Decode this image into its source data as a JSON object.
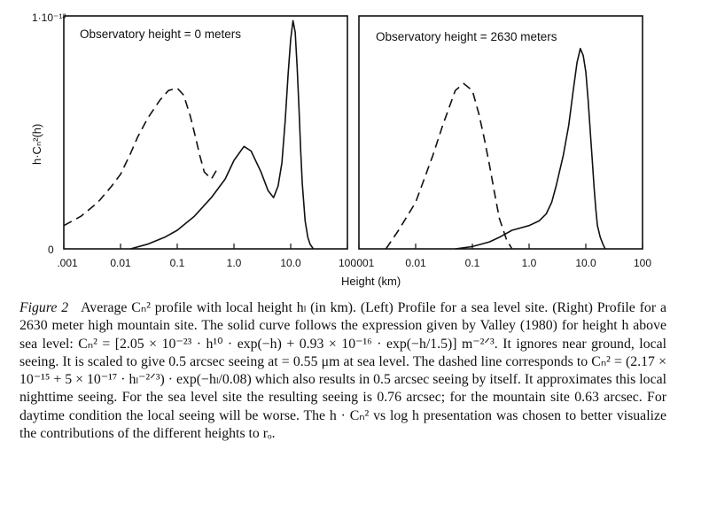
{
  "figure": {
    "ylabel": "h·Cₙ²(h)",
    "y_top_label": "1·10⁻¹³",
    "y_zero_label": "0",
    "xlabel": "Height (km)",
    "caption_label": "Figure 2",
    "caption_text": "Average Cₙ² profile with local height hₗ (in km). (Left) Profile for a sea level site. (Right) Profile for a 2630 meter high mountain site. The solid curve follows the expression given by Valley (1980) for height h above sea level: Cₙ² = [2.05 × 10⁻²³ · h¹⁰ · exp(−h) + 0.93 × 10⁻¹⁶ · exp(−h/1.5)] m⁻²ᐟ³. It ignores near ground, local seeing. It is scaled to give 0.5 arcsec seeing at = 0.55 μm at sea level. The dashed line corresponds to Cₙ² = (2.17 × 10⁻¹⁵ + 5 × 10⁻¹⁷ · hₗ⁻²ᐟ³) · exp(−hₗ/0.08) which also results in 0.5 arcsec seeing by itself. It approximates this local nighttime seeing. For the sea level site the resulting seeing is 0.76 arcsec; for the mountain site 0.63 arcsec. For daytime condition the local seeing will be worse. The h · Cₙ² vs log h presentation was chosen to better visualize the contributions of the different heights to rₒ."
  },
  "chart_data": [
    {
      "type": "line",
      "title": "Observatory height = 0 meters",
      "xlabel": "Height (km)",
      "ylabel": "h·Cₙ²(h)",
      "xscale": "log",
      "xlim": [
        0.001,
        100
      ],
      "ylim": [
        0,
        1.0
      ],
      "tick_labels": [
        ".001",
        "0.01",
        "0.1",
        "1.0",
        "10.0",
        "100"
      ],
      "series": [
        {
          "name": "solid (Valley 1980)",
          "style": "solid",
          "x": [
            0.015,
            0.03,
            0.06,
            0.1,
            0.2,
            0.4,
            0.7,
            1.0,
            1.5,
            2.0,
            3.0,
            4.0,
            5.0,
            6.0,
            7.0,
            8.0,
            9.0,
            10.0,
            11.0,
            12.0,
            13.0,
            14.0,
            15.0,
            16.0,
            18.0,
            20.0,
            22.0,
            25.0
          ],
          "y": [
            0.0,
            0.02,
            0.05,
            0.08,
            0.14,
            0.22,
            0.3,
            0.38,
            0.44,
            0.42,
            0.33,
            0.25,
            0.22,
            0.27,
            0.37,
            0.55,
            0.75,
            0.9,
            0.98,
            0.93,
            0.78,
            0.6,
            0.42,
            0.28,
            0.12,
            0.05,
            0.02,
            0.0
          ]
        },
        {
          "name": "dashed (local seeing)",
          "style": "dashed",
          "x": [
            0.001,
            0.002,
            0.004,
            0.007,
            0.01,
            0.015,
            0.02,
            0.03,
            0.05,
            0.07,
            0.1,
            0.13,
            0.17,
            0.2,
            0.25,
            0.3,
            0.4,
            0.5
          ],
          "y": [
            0.1,
            0.14,
            0.2,
            0.27,
            0.32,
            0.41,
            0.48,
            0.56,
            0.64,
            0.68,
            0.69,
            0.66,
            0.57,
            0.5,
            0.4,
            0.33,
            0.3,
            0.34
          ]
        }
      ]
    },
    {
      "type": "line",
      "title": "Observatory height = 2630 meters",
      "xlabel": "Height (km)",
      "ylabel": "h·Cₙ²(h)",
      "xscale": "log",
      "xlim": [
        0.001,
        100
      ],
      "ylim": [
        0,
        1.0
      ],
      "tick_labels": [
        ".001",
        "0.01",
        "0.1",
        "1.0",
        "10.0",
        "100"
      ],
      "series": [
        {
          "name": "solid (Valley 1980)",
          "style": "solid",
          "x": [
            0.05,
            0.1,
            0.2,
            0.3,
            0.5,
            1.0,
            1.5,
            2.0,
            2.5,
            3.0,
            4.0,
            5.0,
            6.0,
            7.0,
            8.0,
            9.0,
            10.0,
            11.0,
            12.0,
            13.0,
            14.0,
            15.0,
            16.0,
            18.0,
            20.0,
            22.0
          ],
          "y": [
            0.0,
            0.01,
            0.03,
            0.05,
            0.08,
            0.1,
            0.12,
            0.15,
            0.2,
            0.27,
            0.4,
            0.53,
            0.68,
            0.8,
            0.86,
            0.83,
            0.76,
            0.64,
            0.5,
            0.38,
            0.26,
            0.17,
            0.1,
            0.05,
            0.02,
            0.0
          ]
        },
        {
          "name": "dashed (local seeing)",
          "style": "dashed",
          "x": [
            0.003,
            0.005,
            0.01,
            0.02,
            0.03,
            0.05,
            0.07,
            0.1,
            0.13,
            0.16,
            0.2,
            0.25,
            0.3,
            0.4,
            0.5
          ],
          "y": [
            0.0,
            0.08,
            0.2,
            0.4,
            0.53,
            0.68,
            0.71,
            0.68,
            0.58,
            0.48,
            0.36,
            0.23,
            0.13,
            0.04,
            0.0
          ]
        }
      ]
    }
  ]
}
